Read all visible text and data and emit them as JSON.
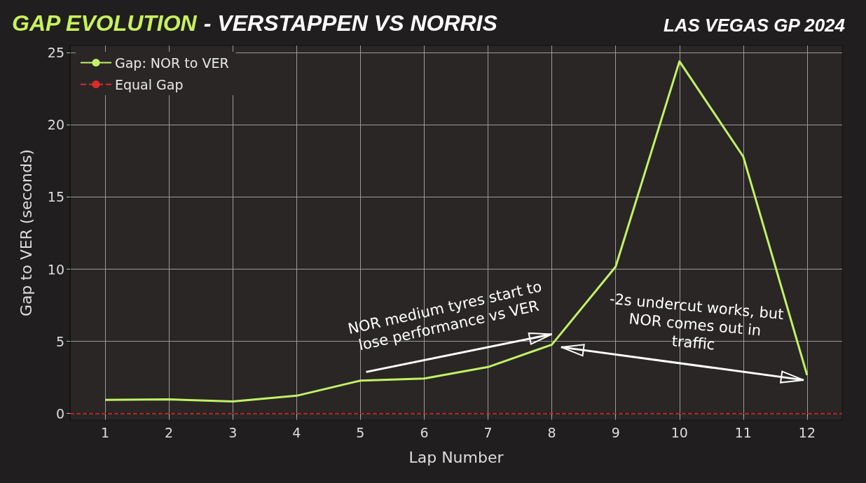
{
  "chart_data": {
    "type": "line",
    "title": "GAP EVOLUTION - VERSTAPPEN VS NORRIS",
    "subtitle": "LAS VEGAS GP 2024",
    "xlabel": "Lap Number",
    "ylabel": "Gap to VER (seconds)",
    "x": [
      1,
      2,
      3,
      4,
      5,
      6,
      7,
      8,
      9,
      10,
      11,
      12
    ],
    "series": [
      {
        "name": "Gap: NOR to VER",
        "color": "#c2f264",
        "values": [
          0.94,
          0.98,
          0.83,
          1.23,
          2.28,
          2.42,
          3.22,
          4.77,
          10.17,
          24.4,
          17.8,
          2.66
        ]
      }
    ],
    "ref_lines": [
      {
        "axis": "y",
        "value": 0,
        "label": "Equal Gap",
        "color": "#e02a2a",
        "line_style": "dashed"
      }
    ],
    "annotations": [
      {
        "text": "NOR medium tyres start to\nlose performance vs VER",
        "x": 8,
        "y": 4.77
      },
      {
        "text": "-2s undercut works, but\nNOR comes out in\ntraffic",
        "x": 12,
        "y": 2.66
      }
    ],
    "xlim": [
      0.45,
      12.55
    ],
    "ylim": [
      -0.45,
      25.5
    ],
    "xticks": [
      1,
      2,
      3,
      4,
      5,
      6,
      7,
      8,
      9,
      10,
      11,
      12
    ],
    "yticks": [
      0,
      5,
      10,
      15,
      20,
      25
    ],
    "grid": true,
    "legend": "top left",
    "marker": "none",
    "line_style": "solid"
  }
}
